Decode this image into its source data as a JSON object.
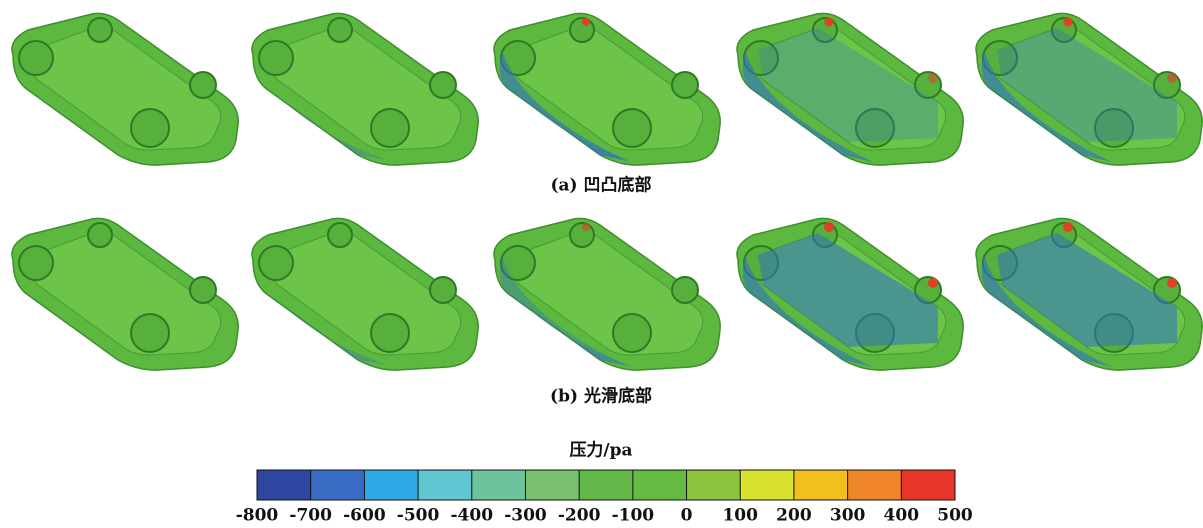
{
  "captions": [
    "(a) 凹凸底部",
    "(b) 光滑底部"
  ],
  "colorbar": {
    "title": "压力/pa",
    "ticks": [
      -800,
      -700,
      -600,
      -500,
      -400,
      -300,
      -200,
      -100,
      0,
      100,
      200,
      300,
      400,
      500
    ],
    "colors": [
      "#2d47a0",
      "#3a6cc6",
      "#2ea9e6",
      "#62c6d2",
      "#6cc39c",
      "#79c171",
      "#62b94a",
      "#66bc43",
      "#8cc43d",
      "#d9e22f",
      "#f3bf1e",
      "#ef8528",
      "#e8352a"
    ]
  }
}
